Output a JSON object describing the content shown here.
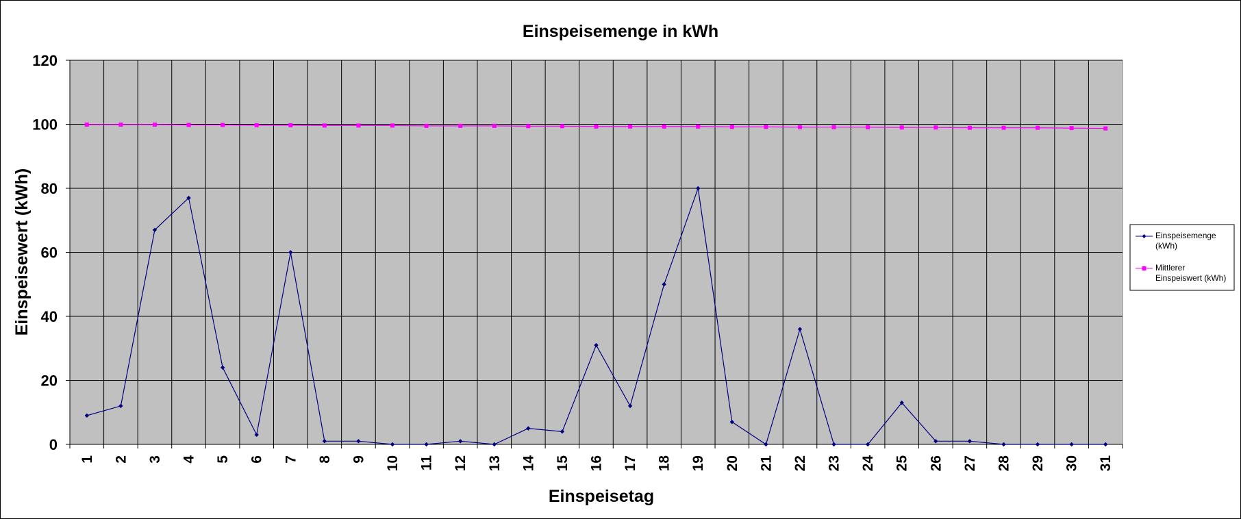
{
  "chart_data": {
    "type": "line",
    "title": "Einspeisemenge in kWh",
    "xlabel": "Einspeisetag",
    "ylabel": "Einspeisewert  (kWh)",
    "ylim": [
      0,
      120
    ],
    "yticks": [
      "0",
      "20",
      "40",
      "60",
      "80",
      "100",
      "120"
    ],
    "grid": true,
    "legend_position": "right",
    "categories": [
      "1",
      "2",
      "3",
      "4",
      "5",
      "6",
      "7",
      "8",
      "9",
      "10",
      "11",
      "12",
      "13",
      "14",
      "15",
      "16",
      "17",
      "18",
      "19",
      "20",
      "21",
      "22",
      "23",
      "24",
      "25",
      "26",
      "27",
      "28",
      "29",
      "30",
      "31"
    ],
    "series": [
      {
        "name": "Einspeisemenge (kWh)",
        "color": "#000080",
        "marker": "diamond",
        "values": [
          9,
          12,
          67,
          77,
          24,
          3,
          60,
          1,
          1,
          0,
          0,
          1,
          0,
          5,
          4,
          31,
          12,
          50,
          80,
          7,
          0,
          36,
          0,
          0,
          13,
          1,
          1,
          0,
          0,
          0,
          0
        ]
      },
      {
        "name": "Mittlerer Einspeiswert (kWh)",
        "color": "#ff00ff",
        "marker": "square",
        "values": [
          99.9,
          99.9,
          99.9,
          99.8,
          99.8,
          99.7,
          99.7,
          99.6,
          99.6,
          99.6,
          99.5,
          99.5,
          99.5,
          99.4,
          99.4,
          99.3,
          99.3,
          99.3,
          99.3,
          99.2,
          99.2,
          99.1,
          99.1,
          99.1,
          99.0,
          99.0,
          98.9,
          98.9,
          98.9,
          98.8,
          98.7
        ]
      }
    ],
    "plot_background": "#c0c0c0",
    "grid_color": "#000000"
  },
  "legend": {
    "entries": [
      {
        "line1": "Einspeisemenge",
        "line2": "(kWh)"
      },
      {
        "line1": "Mittlerer",
        "line2": "Einspeiswert (kWh)"
      }
    ]
  }
}
